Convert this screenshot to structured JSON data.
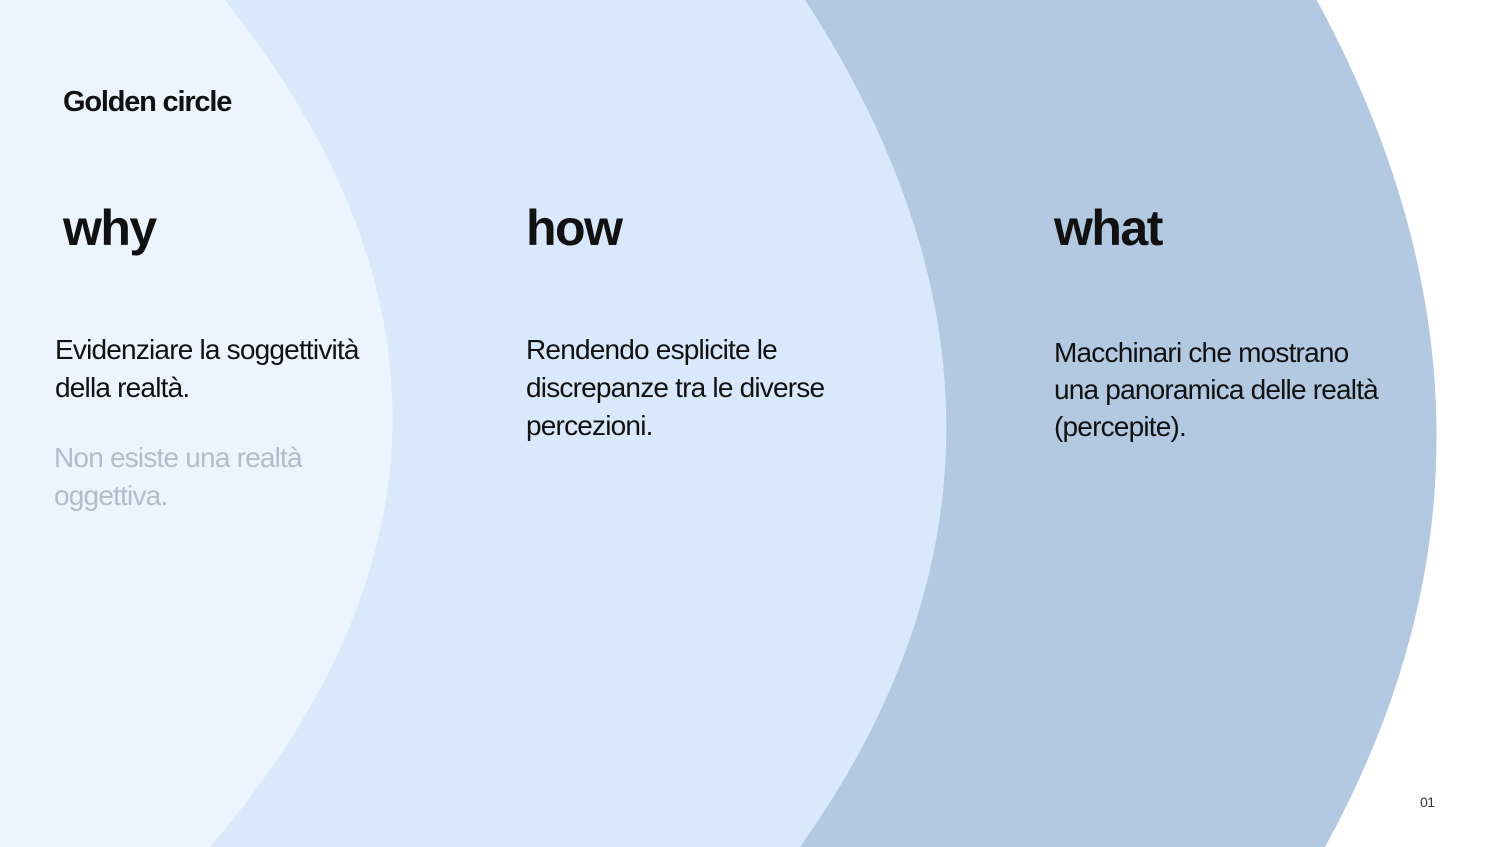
{
  "title": "Golden circle",
  "colors": {
    "background": "#ffffff",
    "outer_band": "#b3c9e2",
    "middle_band": "#d9e9fb",
    "inner_circle": "#ecf4fe",
    "text": "#111111",
    "muted_text": "#b4bcc9"
  },
  "sections": [
    {
      "heading": "why",
      "text": "Evidenziare la soggettività della realtà.",
      "secondary_text": "Non esiste una realtà oggettiva."
    },
    {
      "heading": "how",
      "text": "Rendendo esplicite le discrepanze tra le diverse percezioni."
    },
    {
      "heading": "what",
      "text": "Macchinari che mostrano una panoramica delle realtà (percepite)."
    }
  ],
  "page_number": "01"
}
